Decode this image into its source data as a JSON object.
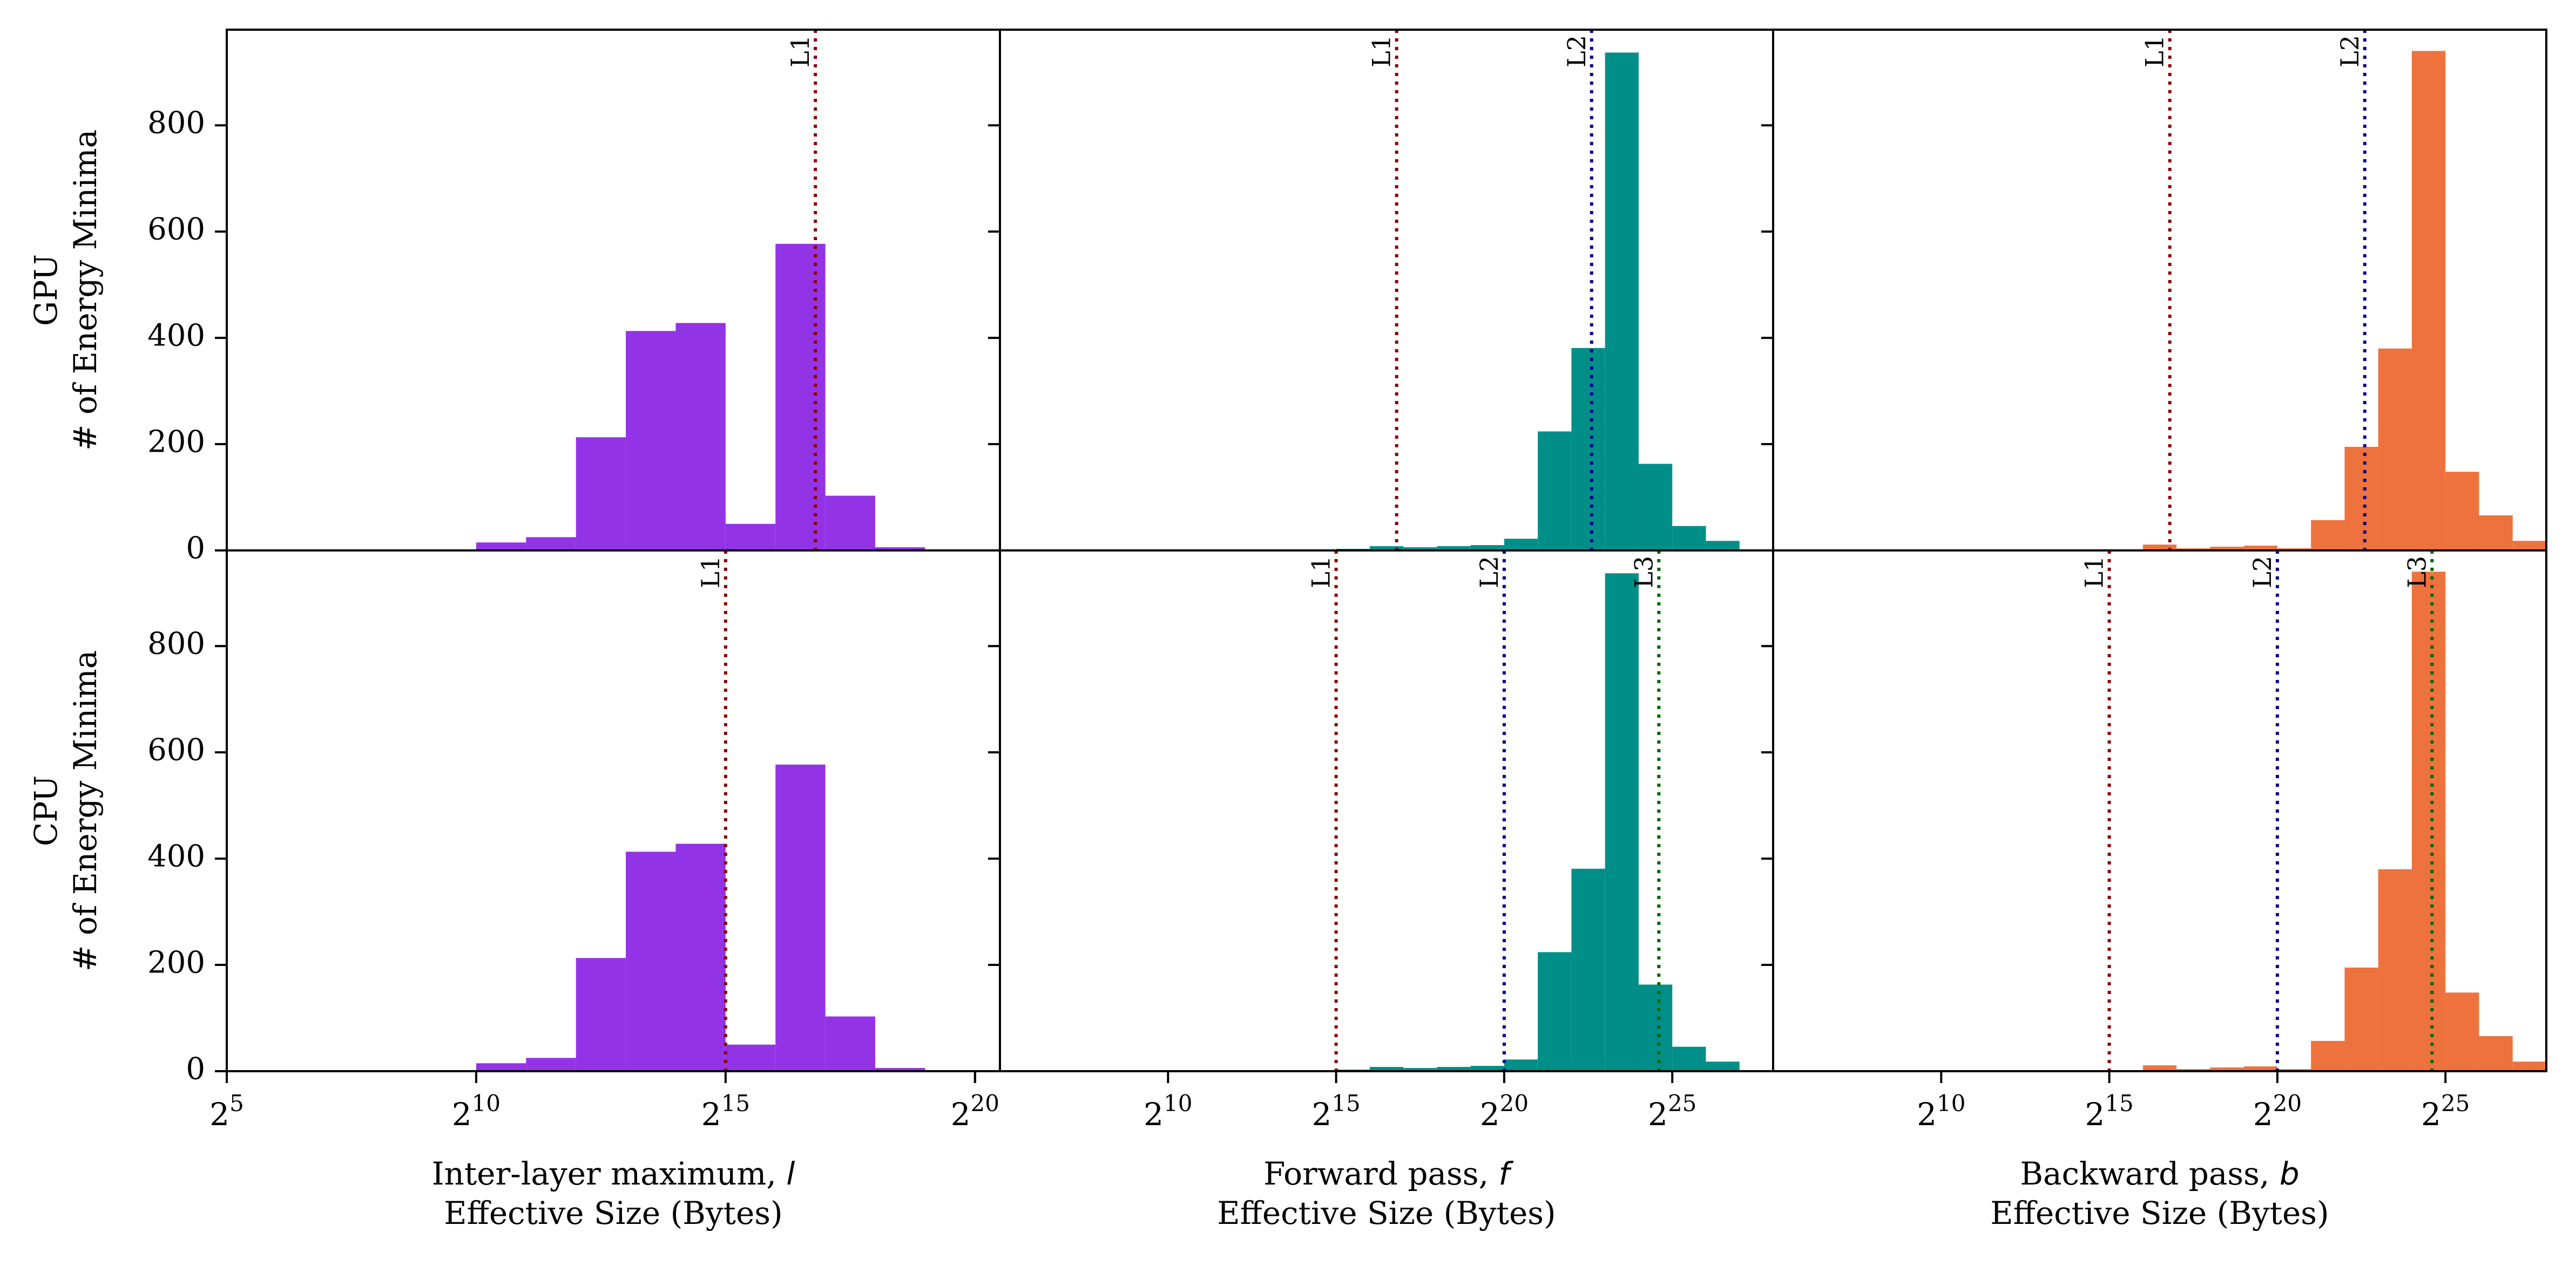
{
  "figure": {
    "colors": {
      "l": "#9333e6",
      "f": "#008f88",
      "b": "#ee723d",
      "L1": "#8b0000",
      "L2": "#00008b",
      "L3": "#006400"
    },
    "rows": [
      {
        "key": "gpu",
        "label_line1": "GPU",
        "label_line2": "# of Energy Minima"
      },
      {
        "key": "cpu",
        "label_line1": "CPU",
        "label_line2": "# of Energy Minima"
      }
    ],
    "columns": [
      {
        "key": "l",
        "label_line1_prefix": "Inter-layer maximum, ",
        "label_var": "l",
        "label_line2": "Effective Size (Bytes)"
      },
      {
        "key": "f",
        "label_line1_prefix": "Forward pass, ",
        "label_var": "f",
        "label_line2": "Effective Size (Bytes)"
      },
      {
        "key": "b",
        "label_line1_prefix": "Backward pass, ",
        "label_var": "b",
        "label_line2": "Effective Size (Bytes)"
      }
    ]
  },
  "chart_data": {
    "type": "bar",
    "subtype": "histogram-grid",
    "x_scale": "log2",
    "x_ticks": [
      {
        "exp": 5,
        "base": "2",
        "sup": "5"
      },
      {
        "exp": 10,
        "base": "2",
        "sup": "10"
      },
      {
        "exp": 15,
        "base": "2",
        "sup": "15"
      },
      {
        "exp": 20,
        "base": "2",
        "sup": "20"
      },
      {
        "exp": 25,
        "base": "2",
        "sup": "25"
      }
    ],
    "xlim_col1": [
      5,
      20.5
    ],
    "xlim_col23": [
      5,
      28
    ],
    "ylim": [
      0,
      980
    ],
    "y_ticks": [
      0,
      200,
      400,
      600,
      800
    ],
    "grid": false,
    "legend": "none",
    "panels": [
      {
        "row": "gpu",
        "col": "l",
        "series": "l",
        "bins": [
          {
            "x0": 9,
            "x1": 10,
            "count": 2
          },
          {
            "x0": 10,
            "x1": 11,
            "count": 15
          },
          {
            "x0": 11,
            "x1": 12,
            "count": 25
          },
          {
            "x0": 12,
            "x1": 13,
            "count": 213
          },
          {
            "x0": 13,
            "x1": 14,
            "count": 413
          },
          {
            "x0": 14,
            "x1": 15,
            "count": 428
          },
          {
            "x0": 15,
            "x1": 16,
            "count": 50
          },
          {
            "x0": 16,
            "x1": 17,
            "count": 577
          },
          {
            "x0": 17,
            "x1": 18,
            "count": 103
          },
          {
            "x0": 18,
            "x1": 19,
            "count": 6
          }
        ],
        "cache_lines": [
          {
            "name": "L1",
            "x": 16.8
          }
        ]
      },
      {
        "row": "gpu",
        "col": "f",
        "series": "f",
        "bins": [
          {
            "x0": 14,
            "x1": 15,
            "count": 1
          },
          {
            "x0": 15,
            "x1": 16,
            "count": 3
          },
          {
            "x0": 16,
            "x1": 17,
            "count": 8
          },
          {
            "x0": 17,
            "x1": 18,
            "count": 6
          },
          {
            "x0": 18,
            "x1": 19,
            "count": 8
          },
          {
            "x0": 19,
            "x1": 20,
            "count": 10
          },
          {
            "x0": 20,
            "x1": 21,
            "count": 22
          },
          {
            "x0": 21,
            "x1": 22,
            "count": 224
          },
          {
            "x0": 22,
            "x1": 23,
            "count": 381
          },
          {
            "x0": 23,
            "x1": 24,
            "count": 937
          },
          {
            "x0": 24,
            "x1": 25,
            "count": 163
          },
          {
            "x0": 25,
            "x1": 26,
            "count": 46
          },
          {
            "x0": 26,
            "x1": 27,
            "count": 18
          }
        ],
        "cache_lines": [
          {
            "name": "L1",
            "x": 16.8
          },
          {
            "name": "L2",
            "x": 22.6
          }
        ]
      },
      {
        "row": "gpu",
        "col": "b",
        "series": "b",
        "bins": [
          {
            "x0": 16,
            "x1": 17,
            "count": 11
          },
          {
            "x0": 17,
            "x1": 18,
            "count": 4
          },
          {
            "x0": 18,
            "x1": 19,
            "count": 7
          },
          {
            "x0": 19,
            "x1": 20,
            "count": 9
          },
          {
            "x0": 20,
            "x1": 21,
            "count": 4
          },
          {
            "x0": 21,
            "x1": 22,
            "count": 57
          },
          {
            "x0": 22,
            "x1": 23,
            "count": 195
          },
          {
            "x0": 23,
            "x1": 24,
            "count": 380
          },
          {
            "x0": 24,
            "x1": 25,
            "count": 940
          },
          {
            "x0": 25,
            "x1": 26,
            "count": 148
          },
          {
            "x0": 26,
            "x1": 27,
            "count": 66
          },
          {
            "x0": 27,
            "x1": 28,
            "count": 18
          }
        ],
        "cache_lines": [
          {
            "name": "L1",
            "x": 16.8
          },
          {
            "name": "L2",
            "x": 22.6
          }
        ]
      },
      {
        "row": "cpu",
        "col": "l",
        "series": "l",
        "bins": [
          {
            "x0": 9,
            "x1": 10,
            "count": 2
          },
          {
            "x0": 10,
            "x1": 11,
            "count": 15
          },
          {
            "x0": 11,
            "x1": 12,
            "count": 25
          },
          {
            "x0": 12,
            "x1": 13,
            "count": 213
          },
          {
            "x0": 13,
            "x1": 14,
            "count": 413
          },
          {
            "x0": 14,
            "x1": 15,
            "count": 428
          },
          {
            "x0": 15,
            "x1": 16,
            "count": 50
          },
          {
            "x0": 16,
            "x1": 17,
            "count": 577
          },
          {
            "x0": 17,
            "x1": 18,
            "count": 103
          },
          {
            "x0": 18,
            "x1": 19,
            "count": 6
          }
        ],
        "cache_lines": [
          {
            "name": "L1",
            "x": 15.0
          }
        ]
      },
      {
        "row": "cpu",
        "col": "f",
        "series": "f",
        "bins": [
          {
            "x0": 14,
            "x1": 15,
            "count": 1
          },
          {
            "x0": 15,
            "x1": 16,
            "count": 3
          },
          {
            "x0": 16,
            "x1": 17,
            "count": 8
          },
          {
            "x0": 17,
            "x1": 18,
            "count": 6
          },
          {
            "x0": 18,
            "x1": 19,
            "count": 8
          },
          {
            "x0": 19,
            "x1": 20,
            "count": 10
          },
          {
            "x0": 20,
            "x1": 21,
            "count": 22
          },
          {
            "x0": 21,
            "x1": 22,
            "count": 224
          },
          {
            "x0": 22,
            "x1": 23,
            "count": 381
          },
          {
            "x0": 23,
            "x1": 24,
            "count": 937
          },
          {
            "x0": 24,
            "x1": 25,
            "count": 163
          },
          {
            "x0": 25,
            "x1": 26,
            "count": 46
          },
          {
            "x0": 26,
            "x1": 27,
            "count": 18
          }
        ],
        "cache_lines": [
          {
            "name": "L1",
            "x": 15.0
          },
          {
            "name": "L2",
            "x": 20.0
          },
          {
            "name": "L3",
            "x": 24.6
          }
        ]
      },
      {
        "row": "cpu",
        "col": "b",
        "series": "b",
        "bins": [
          {
            "x0": 16,
            "x1": 17,
            "count": 11
          },
          {
            "x0": 17,
            "x1": 18,
            "count": 4
          },
          {
            "x0": 18,
            "x1": 19,
            "count": 7
          },
          {
            "x0": 19,
            "x1": 20,
            "count": 9
          },
          {
            "x0": 20,
            "x1": 21,
            "count": 4
          },
          {
            "x0": 21,
            "x1": 22,
            "count": 57
          },
          {
            "x0": 22,
            "x1": 23,
            "count": 195
          },
          {
            "x0": 23,
            "x1": 24,
            "count": 380
          },
          {
            "x0": 24,
            "x1": 25,
            "count": 940
          },
          {
            "x0": 25,
            "x1": 26,
            "count": 148
          },
          {
            "x0": 26,
            "x1": 27,
            "count": 66
          },
          {
            "x0": 27,
            "x1": 28,
            "count": 18
          }
        ],
        "cache_lines": [
          {
            "name": "L1",
            "x": 15.0
          },
          {
            "name": "L2",
            "x": 20.0
          },
          {
            "name": "L3",
            "x": 24.6
          }
        ]
      }
    ]
  }
}
